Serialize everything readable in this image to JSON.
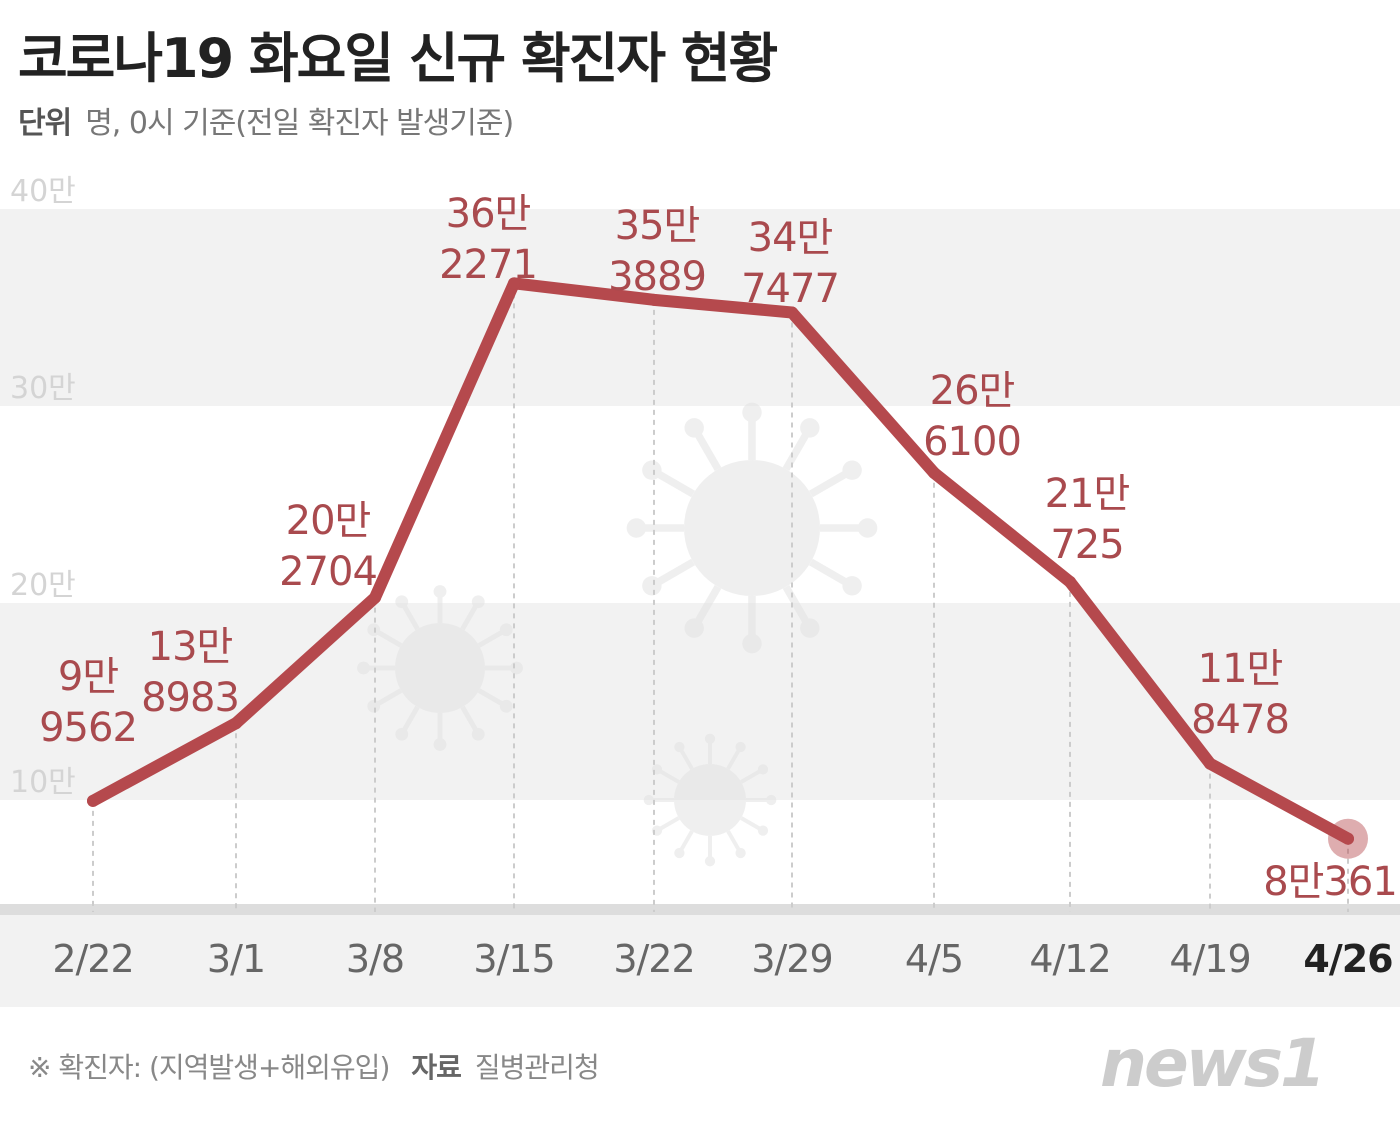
{
  "title": "코로나19 화요일 신규 확진자 현황",
  "unit_label": "단위",
  "unit_text": "명, 0시 기준(전일 확진자 발생기준)",
  "footer": {
    "note": "※ 확진자: (지역발생+해외유입)",
    "source_label": "자료",
    "source": "질병관리청"
  },
  "logo": "news1",
  "colors": {
    "line": "#b5494d",
    "label": "#a94a4e",
    "band": "#f2f2f2"
  },
  "chart_data": {
    "type": "line",
    "categories": [
      "2/22",
      "3/1",
      "3/8",
      "3/15",
      "3/22",
      "3/29",
      "4/5",
      "4/12",
      "4/19",
      "4/26"
    ],
    "values": [
      99562,
      138983,
      202704,
      362271,
      353889,
      347477,
      266100,
      210725,
      118478,
      80361
    ],
    "data_labels": [
      [
        "9만",
        "9562"
      ],
      [
        "13만",
        "8983"
      ],
      [
        "20만",
        "2704"
      ],
      [
        "36만",
        "2271"
      ],
      [
        "35만",
        "3889"
      ],
      [
        "34만",
        "7477"
      ],
      [
        "26만",
        "6100"
      ],
      [
        "21만",
        "725"
      ],
      [
        "11만",
        "8478"
      ],
      [
        "8만361"
      ]
    ],
    "yticks": [
      {
        "value": 100000,
        "label": "10만"
      },
      {
        "value": 200000,
        "label": "20만"
      },
      {
        "value": 300000,
        "label": "30만"
      },
      {
        "value": 400000,
        "label": "40만"
      }
    ],
    "ylim": [
      45000,
      400000
    ],
    "highlight_category": "4/26",
    "grid": "alternating bands"
  }
}
